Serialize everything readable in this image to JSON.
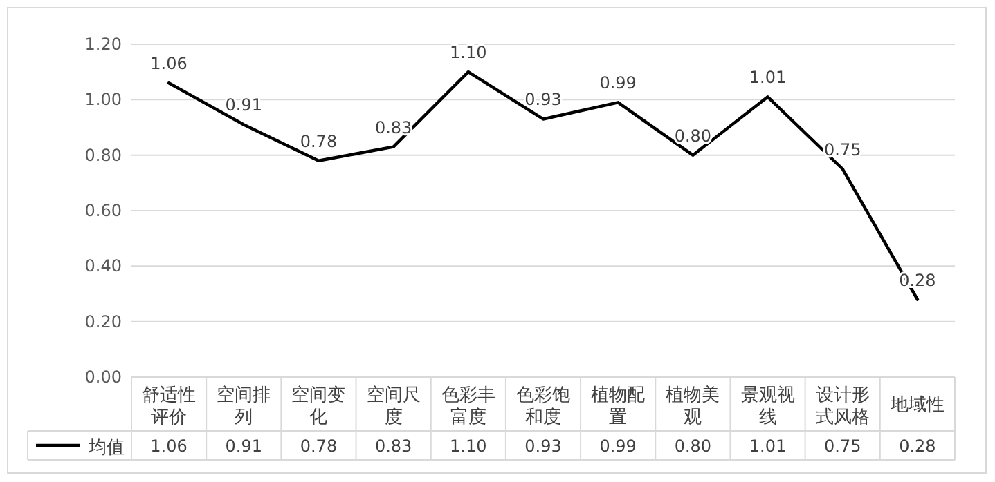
{
  "chart_data": {
    "type": "line",
    "categories": [
      "舒适性评价",
      "空间排列",
      "空间变化",
      "空间尺度",
      "色彩丰富度",
      "色彩饱和度",
      "植物配置",
      "植物美观",
      "景观视线",
      "设计形式风格",
      "地域性"
    ],
    "series": [
      {
        "name": "均值",
        "color": "#000000",
        "values": [
          1.06,
          0.91,
          0.78,
          0.83,
          1.1,
          0.93,
          0.99,
          0.8,
          1.01,
          0.75,
          0.28
        ],
        "value_labels": [
          "1.06",
          "0.91",
          "0.78",
          "0.83",
          "1.10",
          "0.93",
          "0.99",
          "0.80",
          "1.01",
          "0.75",
          "0.28"
        ]
      }
    ],
    "ylim": [
      0,
      1.2
    ],
    "yticks": [
      {
        "value": 0,
        "label": "0.00"
      },
      {
        "value": 0.2,
        "label": "0.20"
      },
      {
        "value": 0.4,
        "label": "0.40"
      },
      {
        "value": 0.6,
        "label": "0.60"
      },
      {
        "value": 0.8,
        "label": "0.80"
      },
      {
        "value": 1.0,
        "label": "1.00"
      },
      {
        "value": 1.2,
        "label": "1.20"
      }
    ],
    "grid": "y",
    "legend": "bottom",
    "marker": "none",
    "line_style": "solid"
  }
}
